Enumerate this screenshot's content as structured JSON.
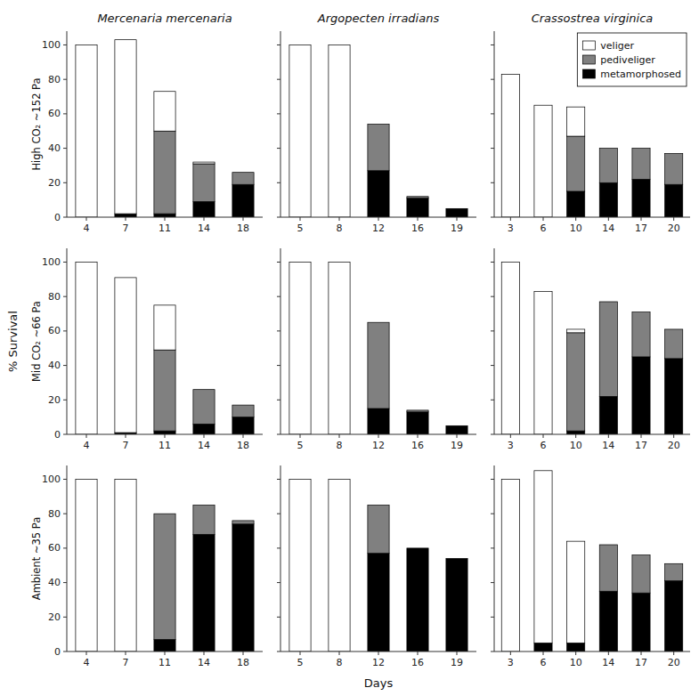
{
  "xlabel": "Days",
  "ylabel": "% Survival",
  "chart_data": [
    {
      "type": "bar",
      "stacked": true,
      "title": "Mercenaria mercenaria",
      "y_label": "High CO₂ ~152 Pa",
      "categories": [
        "4",
        "7",
        "11",
        "14",
        "18"
      ],
      "series": [
        {
          "name": "veliger",
          "color": "#ffffff",
          "values": [
            100,
            101,
            23,
            1,
            0
          ]
        },
        {
          "name": "pediveliger",
          "color": "#808080",
          "values": [
            0,
            0,
            48,
            22,
            7
          ]
        },
        {
          "name": "metamorphosed",
          "color": "#000000",
          "values": [
            0,
            2,
            2,
            9,
            19
          ]
        }
      ],
      "ylim": [
        0,
        108
      ],
      "yticks": [
        0,
        20,
        40,
        60,
        80,
        100
      ],
      "grid": false
    },
    {
      "type": "bar",
      "stacked": true,
      "title": "Argopecten irradians",
      "categories": [
        "5",
        "8",
        "12",
        "16",
        "19"
      ],
      "series": [
        {
          "name": "veliger",
          "color": "#ffffff",
          "values": [
            100,
            100,
            0,
            0,
            0
          ]
        },
        {
          "name": "pediveliger",
          "color": "#808080",
          "values": [
            0,
            0,
            27,
            1,
            0
          ]
        },
        {
          "name": "metamorphosed",
          "color": "#000000",
          "values": [
            0,
            0,
            27,
            11,
            5
          ]
        }
      ],
      "ylim": [
        0,
        108
      ],
      "yticks": [
        0,
        20,
        40,
        60,
        80,
        100
      ],
      "grid": false,
      "tick_labels": "x"
    },
    {
      "type": "bar",
      "stacked": true,
      "title": "Crassostrea virginica",
      "legend": "upper right",
      "categories": [
        "3",
        "6",
        "10",
        "14",
        "17",
        "20"
      ],
      "series": [
        {
          "name": "veliger",
          "color": "#ffffff",
          "values": [
            83,
            65,
            17,
            0,
            0,
            0
          ]
        },
        {
          "name": "pediveliger",
          "color": "#808080",
          "values": [
            0,
            0,
            32,
            20,
            18,
            18
          ]
        },
        {
          "name": "metamorphosed",
          "color": "#000000",
          "values": [
            0,
            0,
            15,
            20,
            22,
            19
          ]
        }
      ],
      "ylim": [
        0,
        108
      ],
      "yticks": [
        0,
        20,
        40,
        60,
        80,
        100
      ],
      "grid": false,
      "tick_labels": "x"
    },
    {
      "type": "bar",
      "stacked": true,
      "y_label": "Mid CO₂ ~66 Pa",
      "categories": [
        "4",
        "7",
        "11",
        "14",
        "18"
      ],
      "series": [
        {
          "name": "veliger",
          "color": "#ffffff",
          "values": [
            100,
            90,
            26,
            0,
            0
          ]
        },
        {
          "name": "pediveliger",
          "color": "#808080",
          "values": [
            0,
            0,
            47,
            20,
            7
          ]
        },
        {
          "name": "metamorphosed",
          "color": "#000000",
          "values": [
            0,
            1,
            2,
            6,
            10
          ]
        }
      ],
      "ylim": [
        0,
        108
      ],
      "yticks": [
        0,
        20,
        40,
        60,
        80,
        100
      ],
      "grid": false
    },
    {
      "type": "bar",
      "stacked": true,
      "categories": [
        "5",
        "8",
        "12",
        "16",
        "19"
      ],
      "series": [
        {
          "name": "veliger",
          "color": "#ffffff",
          "values": [
            100,
            100,
            0,
            0,
            0
          ]
        },
        {
          "name": "pediveliger",
          "color": "#808080",
          "values": [
            0,
            0,
            50,
            1,
            0
          ]
        },
        {
          "name": "metamorphosed",
          "color": "#000000",
          "values": [
            0,
            0,
            15,
            13,
            5
          ]
        }
      ],
      "ylim": [
        0,
        108
      ],
      "yticks": [
        0,
        20,
        40,
        60,
        80,
        100
      ],
      "grid": false,
      "tick_labels": "x"
    },
    {
      "type": "bar",
      "stacked": true,
      "categories": [
        "3",
        "6",
        "10",
        "14",
        "17",
        "20"
      ],
      "series": [
        {
          "name": "veliger",
          "color": "#ffffff",
          "values": [
            100,
            83,
            2,
            0,
            0,
            0
          ]
        },
        {
          "name": "pediveliger",
          "color": "#808080",
          "values": [
            0,
            0,
            57,
            55,
            26,
            17
          ]
        },
        {
          "name": "metamorphosed",
          "color": "#000000",
          "values": [
            0,
            0,
            2,
            22,
            45,
            44
          ]
        }
      ],
      "ylim": [
        0,
        108
      ],
      "yticks": [
        0,
        20,
        40,
        60,
        80,
        100
      ],
      "grid": false,
      "tick_labels": "x"
    },
    {
      "type": "bar",
      "stacked": true,
      "y_label": "Ambient ~35 Pa",
      "categories": [
        "4",
        "7",
        "11",
        "14",
        "18"
      ],
      "series": [
        {
          "name": "veliger",
          "color": "#ffffff",
          "values": [
            100,
            100,
            0,
            0,
            0
          ]
        },
        {
          "name": "pediveliger",
          "color": "#808080",
          "values": [
            0,
            0,
            73,
            17,
            2
          ]
        },
        {
          "name": "metamorphosed",
          "color": "#000000",
          "values": [
            0,
            0,
            7,
            68,
            74
          ]
        }
      ],
      "ylim": [
        0,
        108
      ],
      "yticks": [
        0,
        20,
        40,
        60,
        80,
        100
      ],
      "grid": false
    },
    {
      "type": "bar",
      "stacked": true,
      "categories": [
        "5",
        "8",
        "12",
        "16",
        "19"
      ],
      "series": [
        {
          "name": "veliger",
          "color": "#ffffff",
          "values": [
            100,
            100,
            0,
            0,
            0
          ]
        },
        {
          "name": "pediveliger",
          "color": "#808080",
          "values": [
            0,
            0,
            28,
            0,
            0
          ]
        },
        {
          "name": "metamorphosed",
          "color": "#000000",
          "values": [
            0,
            0,
            57,
            60,
            54
          ]
        }
      ],
      "ylim": [
        0,
        108
      ],
      "yticks": [
        0,
        20,
        40,
        60,
        80,
        100
      ],
      "grid": false,
      "tick_labels": "x"
    },
    {
      "type": "bar",
      "stacked": true,
      "categories": [
        "3",
        "6",
        "10",
        "14",
        "17",
        "20"
      ],
      "series": [
        {
          "name": "veliger",
          "color": "#ffffff",
          "values": [
            100,
            100,
            59,
            0,
            0,
            0
          ]
        },
        {
          "name": "pediveliger",
          "color": "#808080",
          "values": [
            0,
            0,
            0,
            27,
            22,
            10
          ]
        },
        {
          "name": "metamorphosed",
          "color": "#000000",
          "values": [
            0,
            5,
            5,
            35,
            34,
            41
          ]
        }
      ],
      "ylim": [
        0,
        108
      ],
      "yticks": [
        0,
        20,
        40,
        60,
        80,
        100
      ],
      "grid": false,
      "tick_labels": "x"
    }
  ]
}
